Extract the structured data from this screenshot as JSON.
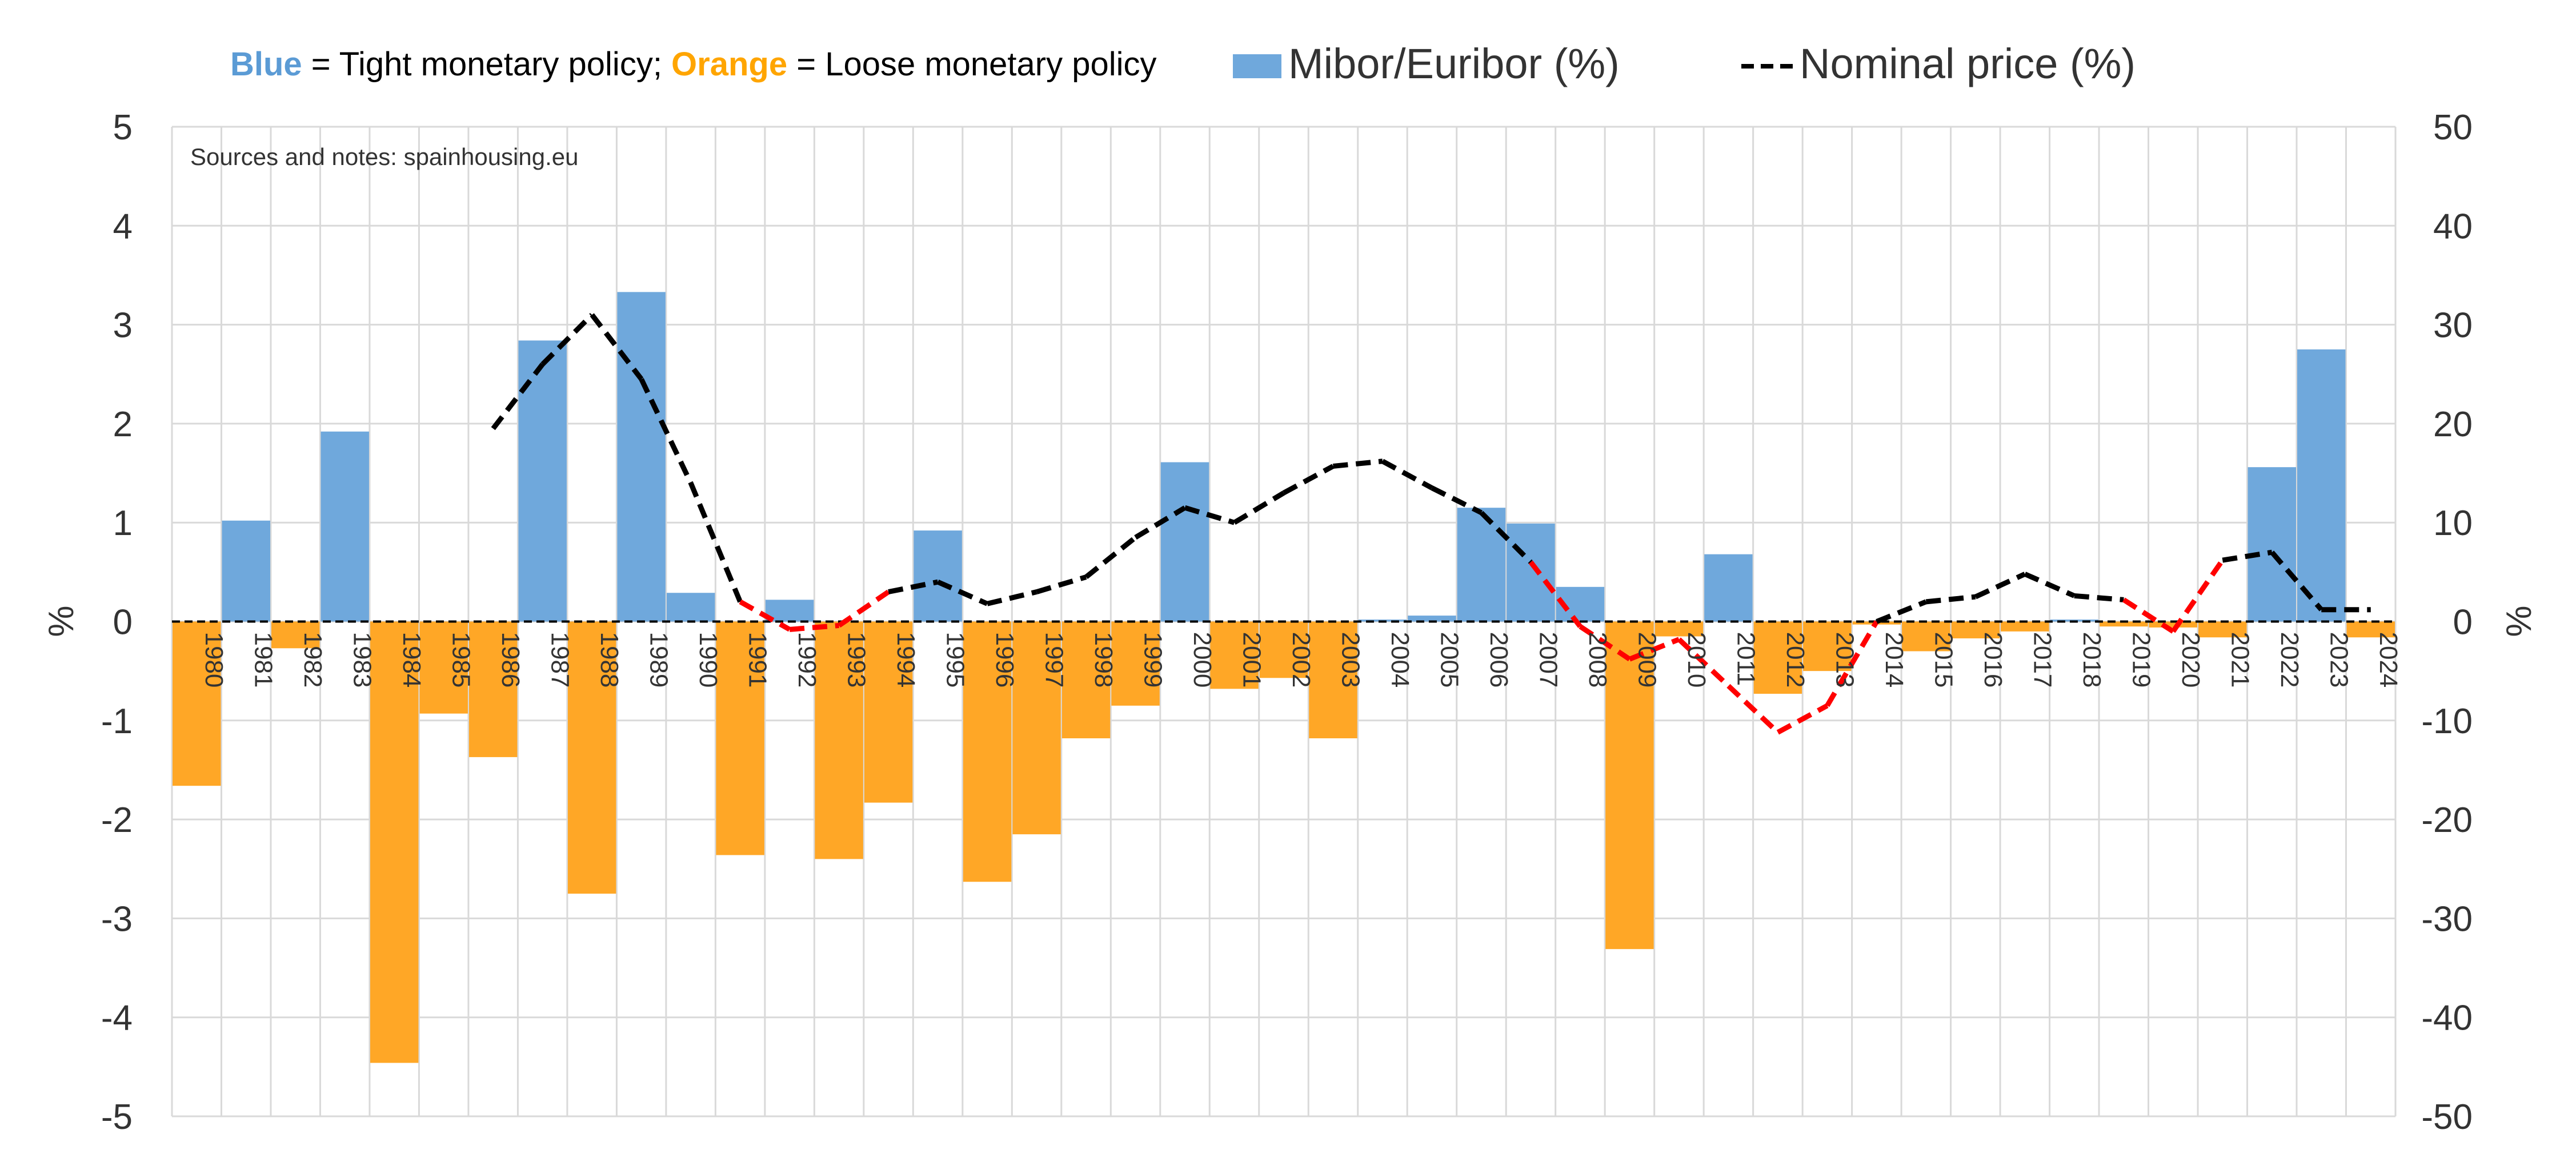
{
  "chart_data": {
    "type": "bar",
    "title": "",
    "legend": {
      "policy_blue_word": "Blue",
      "policy_blue_rest": " = Tight monetary policy; ",
      "policy_orange_word": "Orange",
      "policy_orange_rest": " = Loose monetary policy",
      "bars_label": "Mibor/Euribor (%)",
      "line_label": "Nominal price (%)",
      "placement": "top"
    },
    "note": "Sources and notes: spainhousing.eu",
    "ylabel_left": "%",
    "ylabel_right": "%",
    "ylim_left": [
      -5,
      5
    ],
    "ylim_right": [
      -50,
      50
    ],
    "yticks_left": [
      "5",
      "4",
      "3",
      "2",
      "1",
      "0",
      "-1",
      "-2",
      "-3",
      "-4",
      "-5"
    ],
    "yticks_right": [
      "50",
      "40",
      "30",
      "20",
      "10",
      "0",
      "-10",
      "-20",
      "-30",
      "-40",
      "-50"
    ],
    "grid": true,
    "colors": {
      "tight": "#6FA8DC",
      "loose": "#FFA726",
      "line_normal": "#000000",
      "line_negative": "#FF0000",
      "blue_text": "#5B9BD5",
      "orange_text": "#FFA500",
      "grid": "#D9D9D9",
      "axis_text": "#595959"
    },
    "categories": [
      "1980",
      "1981",
      "1982",
      "1983",
      "1984",
      "1985",
      "1986",
      "1987",
      "1988",
      "1989",
      "1990",
      "1991",
      "1992",
      "1993",
      "1994",
      "1995",
      "1996",
      "1997",
      "1998",
      "1999",
      "2000",
      "2001",
      "2002",
      "2003",
      "2004",
      "2005",
      "2006",
      "2007",
      "2008",
      "2009",
      "2010",
      "2011",
      "2012",
      "2013",
      "2014",
      "2015",
      "2016",
      "2017",
      "2018",
      "2019",
      "2020",
      "2021",
      "2022",
      "2023",
      "2024"
    ],
    "series": [
      {
        "name": "Mibor/Euribor (%)",
        "kind": "bar",
        "axis": "left",
        "values": [
          -1.66,
          1.02,
          -0.27,
          1.92,
          -4.46,
          -0.93,
          -1.37,
          2.84,
          -2.75,
          3.33,
          0.29,
          -2.36,
          0.22,
          -2.4,
          -1.83,
          0.92,
          -2.63,
          -2.15,
          -1.18,
          -0.85,
          1.61,
          -0.68,
          -0.57,
          -1.18,
          0.02,
          0.06,
          1.15,
          0.99,
          0.35,
          -3.31,
          -0.15,
          0.68,
          -0.73,
          -0.5,
          -0.03,
          -0.3,
          -0.17,
          -0.1,
          0.02,
          -0.05,
          -0.06,
          -0.16,
          1.56,
          2.75,
          -0.16
        ]
      },
      {
        "name": "Nominal price (%)",
        "kind": "line",
        "axis": "right",
        "values": [
          null,
          null,
          null,
          null,
          null,
          null,
          19.5,
          26.0,
          31.0,
          24.5,
          14.0,
          2.0,
          -0.8,
          -0.4,
          3.0,
          4.0,
          1.8,
          3.0,
          4.5,
          8.5,
          11.5,
          10.0,
          13.0,
          15.7,
          16.2,
          13.5,
          11.0,
          6.0,
          -0.5,
          -3.8,
          -1.8,
          -6.5,
          -11.2,
          -8.5,
          0.0,
          2.0,
          2.5,
          4.8,
          2.6,
          2.2,
          -1.0,
          6.2,
          7.0,
          1.2,
          1.2
        ]
      }
    ]
  }
}
